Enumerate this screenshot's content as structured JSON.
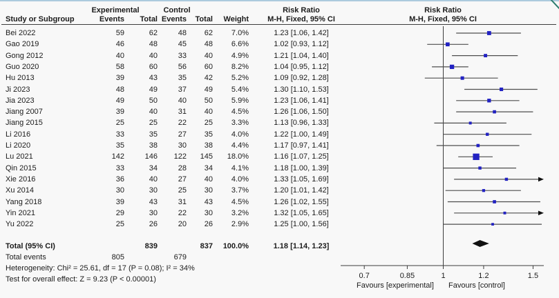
{
  "header": {
    "group_experimental": "Experimental",
    "group_control": "Control",
    "col_study": "Study or Subgroup",
    "col_events": "Events",
    "col_total": "Total",
    "col_weight": "Weight",
    "risk_ratio": "Risk Ratio",
    "method": "M-H, Fixed, 95% CI"
  },
  "colors": {
    "marker_blue": "#2222c2",
    "summary_black": "#111111",
    "ci_line": "#4d4d4d",
    "axis": "#3c3c3c",
    "top_border_blue": "#accadd",
    "corner_teal": "#2e7d6f"
  },
  "chart_data": {
    "type": "scatter",
    "subtype": "forest-plot",
    "title": "Risk Ratio",
    "method": "M-H, Fixed, 95% CI",
    "x_scale": "log",
    "x_ticks": [
      0.7,
      0.85,
      1,
      1.2,
      1.5
    ],
    "x_axis_range": [
      0.64,
      1.58
    ],
    "null_line": 1,
    "favours_left": "Favours [experimental]",
    "favours_right": "Favours [control]",
    "studies": [
      {
        "name": "Bei 2022",
        "exp_events": 59,
        "exp_total": 62,
        "ctl_events": 48,
        "ctl_total": 62,
        "weight_pct": 7.0,
        "weight_label": "7.0%",
        "rr": 1.23,
        "ci_low": 1.06,
        "ci_high": 1.42,
        "ci_label": "1.23 [1.06, 1.42]"
      },
      {
        "name": "Gao 2019",
        "exp_events": 46,
        "exp_total": 48,
        "ctl_events": 45,
        "ctl_total": 48,
        "weight_pct": 6.6,
        "weight_label": "6.6%",
        "rr": 1.02,
        "ci_low": 0.93,
        "ci_high": 1.12,
        "ci_label": "1.02 [0.93, 1.12]"
      },
      {
        "name": "Gong 2012",
        "exp_events": 40,
        "exp_total": 40,
        "ctl_events": 33,
        "ctl_total": 40,
        "weight_pct": 4.9,
        "weight_label": "4.9%",
        "rr": 1.21,
        "ci_low": 1.04,
        "ci_high": 1.4,
        "ci_label": "1.21 [1.04, 1.40]"
      },
      {
        "name": "Guo 2020",
        "exp_events": 58,
        "exp_total": 60,
        "ctl_events": 56,
        "ctl_total": 60,
        "weight_pct": 8.2,
        "weight_label": "8.2%",
        "rr": 1.04,
        "ci_low": 0.95,
        "ci_high": 1.12,
        "ci_label": "1.04 [0.95, 1.12]"
      },
      {
        "name": "Hu 2013",
        "exp_events": 39,
        "exp_total": 43,
        "ctl_events": 35,
        "ctl_total": 42,
        "weight_pct": 5.2,
        "weight_label": "5.2%",
        "rr": 1.09,
        "ci_low": 0.92,
        "ci_high": 1.28,
        "ci_label": "1.09 [0.92, 1.28]"
      },
      {
        "name": "Ji 2023",
        "exp_events": 48,
        "exp_total": 49,
        "ctl_events": 37,
        "ctl_total": 49,
        "weight_pct": 5.4,
        "weight_label": "5.4%",
        "rr": 1.3,
        "ci_low": 1.1,
        "ci_high": 1.53,
        "ci_label": "1.30 [1.10, 1.53]"
      },
      {
        "name": "Jia 2023",
        "exp_events": 49,
        "exp_total": 50,
        "ctl_events": 40,
        "ctl_total": 50,
        "weight_pct": 5.9,
        "weight_label": "5.9%",
        "rr": 1.23,
        "ci_low": 1.06,
        "ci_high": 1.41,
        "ci_label": "1.23 [1.06, 1.41]"
      },
      {
        "name": "Jiang 2007",
        "exp_events": 39,
        "exp_total": 40,
        "ctl_events": 31,
        "ctl_total": 40,
        "weight_pct": 4.5,
        "weight_label": "4.5%",
        "rr": 1.26,
        "ci_low": 1.06,
        "ci_high": 1.5,
        "ci_label": "1.26 [1.06, 1.50]"
      },
      {
        "name": "Jiang 2015",
        "exp_events": 25,
        "exp_total": 25,
        "ctl_events": 22,
        "ctl_total": 25,
        "weight_pct": 3.3,
        "weight_label": "3.3%",
        "rr": 1.13,
        "ci_low": 0.96,
        "ci_high": 1.33,
        "ci_label": "1.13 [0.96, 1.33]"
      },
      {
        "name": "Li 2016",
        "exp_events": 33,
        "exp_total": 35,
        "ctl_events": 27,
        "ctl_total": 35,
        "weight_pct": 4.0,
        "weight_label": "4.0%",
        "rr": 1.22,
        "ci_low": 1.0,
        "ci_high": 1.49,
        "ci_label": "1.22 [1.00, 1.49]"
      },
      {
        "name": "Li 2020",
        "exp_events": 35,
        "exp_total": 38,
        "ctl_events": 30,
        "ctl_total": 38,
        "weight_pct": 4.4,
        "weight_label": "4.4%",
        "rr": 1.17,
        "ci_low": 0.97,
        "ci_high": 1.41,
        "ci_label": "1.17 [0.97, 1.41]"
      },
      {
        "name": "Lu 2021",
        "exp_events": 142,
        "exp_total": 146,
        "ctl_events": 122,
        "ctl_total": 145,
        "weight_pct": 18.0,
        "weight_label": "18.0%",
        "rr": 1.16,
        "ci_low": 1.07,
        "ci_high": 1.25,
        "ci_label": "1.16 [1.07, 1.25]"
      },
      {
        "name": "Qin 2015",
        "exp_events": 33,
        "exp_total": 34,
        "ctl_events": 28,
        "ctl_total": 34,
        "weight_pct": 4.1,
        "weight_label": "4.1%",
        "rr": 1.18,
        "ci_low": 1.0,
        "ci_high": 1.39,
        "ci_label": "1.18 [1.00, 1.39]"
      },
      {
        "name": "Xie 2016",
        "exp_events": 36,
        "exp_total": 40,
        "ctl_events": 27,
        "ctl_total": 40,
        "weight_pct": 4.0,
        "weight_label": "4.0%",
        "rr": 1.33,
        "ci_low": 1.05,
        "ci_high": 1.69,
        "ci_label": "1.33 [1.05, 1.69]"
      },
      {
        "name": "Xu 2014",
        "exp_events": 30,
        "exp_total": 30,
        "ctl_events": 25,
        "ctl_total": 30,
        "weight_pct": 3.7,
        "weight_label": "3.7%",
        "rr": 1.2,
        "ci_low": 1.01,
        "ci_high": 1.42,
        "ci_label": "1.20 [1.01, 1.42]"
      },
      {
        "name": "Yang 2018",
        "exp_events": 39,
        "exp_total": 43,
        "ctl_events": 31,
        "ctl_total": 43,
        "weight_pct": 4.5,
        "weight_label": "4.5%",
        "rr": 1.26,
        "ci_low": 1.02,
        "ci_high": 1.55,
        "ci_label": "1.26 [1.02, 1.55]"
      },
      {
        "name": "Yin 2021",
        "exp_events": 29,
        "exp_total": 30,
        "ctl_events": 22,
        "ctl_total": 30,
        "weight_pct": 3.2,
        "weight_label": "3.2%",
        "rr": 1.32,
        "ci_low": 1.05,
        "ci_high": 1.65,
        "ci_label": "1.32 [1.05, 1.65]"
      },
      {
        "name": "Yu 2022",
        "exp_events": 25,
        "exp_total": 26,
        "ctl_events": 20,
        "ctl_total": 26,
        "weight_pct": 2.9,
        "weight_label": "2.9%",
        "rr": 1.25,
        "ci_low": 1.0,
        "ci_high": 1.56,
        "ci_label": "1.25 [1.00, 1.56]"
      }
    ],
    "total": {
      "label": "Total (95% CI)",
      "exp_total": 839,
      "ctl_total": 837,
      "weight_label": "100.0%",
      "rr": 1.18,
      "ci_low": 1.14,
      "ci_high": 1.23,
      "ci_label": "1.18 [1.14, 1.23]"
    },
    "total_events": {
      "label": "Total events",
      "experimental": 805,
      "control": 679
    },
    "heterogeneity": "Heterogeneity: Chi² = 25.61, df = 17 (P = 0.08); I² = 34%",
    "overall_effect": "Test for overall effect: Z = 9.23 (P < 0.00001)"
  }
}
